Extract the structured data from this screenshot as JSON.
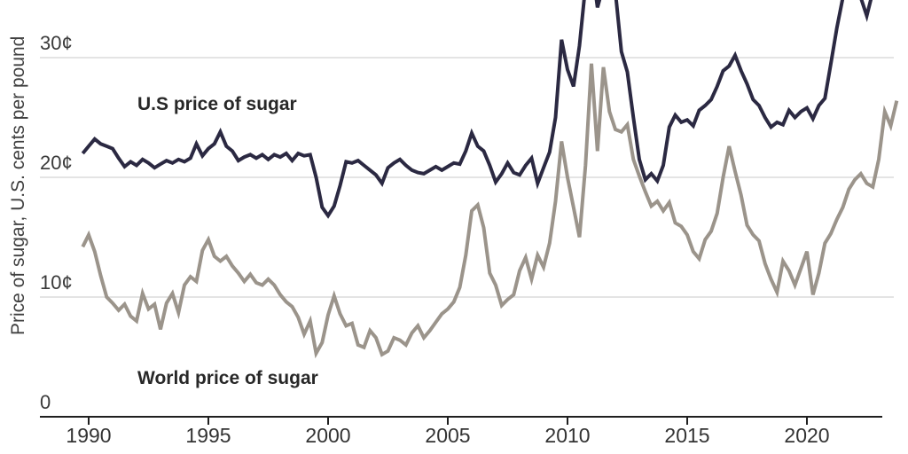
{
  "y_axis": {
    "title": "Price of sugar, U.S. cents per pound",
    "tick_labels": [
      "0",
      "10¢",
      "20¢",
      "30¢"
    ]
  },
  "x_axis": {
    "tick_labels": [
      "1990",
      "1995",
      "2000",
      "2005",
      "2010",
      "2015",
      "2020"
    ]
  },
  "series_labels": {
    "us": "U.S price of sugar",
    "world": "World price of sugar"
  },
  "colors": {
    "us_line": "#2b2942",
    "world_line": "#9b948b",
    "grid": "#dcdcdc",
    "axis": "#1f1f1f",
    "tick_text": "#333333"
  },
  "chart_data": {
    "type": "line",
    "title": "",
    "xlabel": "",
    "ylabel": "Price of sugar, U.S. cents per pound",
    "x_start": 1989.75,
    "x_step": 0.25,
    "x_end": 2023.75,
    "x_label_ticks": [
      1990,
      1995,
      2000,
      2005,
      2010,
      2015,
      2020
    ],
    "y_ticks": [
      0,
      10,
      20,
      30
    ],
    "y_unit": "U.S. cents per pound",
    "ylim_visible": [
      0,
      34.8
    ],
    "grid": "horizontal-only",
    "legend_position": "inline-annotations",
    "annotations": [
      "U.S price of sugar",
      "World price of sugar"
    ],
    "series": [
      {
        "name": "U.S price of sugar",
        "values": [
          22.0,
          22.6,
          23.2,
          22.8,
          22.6,
          22.4,
          21.6,
          20.9,
          21.3,
          21.0,
          21.5,
          21.2,
          20.8,
          21.1,
          21.4,
          21.2,
          21.5,
          21.3,
          21.6,
          22.8,
          21.8,
          22.4,
          22.8,
          23.8,
          22.6,
          22.2,
          21.4,
          21.7,
          21.9,
          21.6,
          21.9,
          21.5,
          21.9,
          21.7,
          22.0,
          21.4,
          22.0,
          21.8,
          21.9,
          20.0,
          17.5,
          16.8,
          17.6,
          19.3,
          21.3,
          21.2,
          21.4,
          21.0,
          20.6,
          20.2,
          19.5,
          20.8,
          21.2,
          21.5,
          21.0,
          20.6,
          20.4,
          20.3,
          20.6,
          20.9,
          20.6,
          20.9,
          21.2,
          21.1,
          22.2,
          23.7,
          22.6,
          22.2,
          21.0,
          19.6,
          20.3,
          21.2,
          20.4,
          20.2,
          21.0,
          21.6,
          19.5,
          20.8,
          22.1,
          25.0,
          31.5,
          29.0,
          27.6,
          31.0,
          36.0,
          38.0,
          34.2,
          36.0,
          38.0,
          35.5,
          30.5,
          28.8,
          25.0,
          21.5,
          19.8,
          20.3,
          19.7,
          21.0,
          24.2,
          25.2,
          24.6,
          24.8,
          24.3,
          25.6,
          26.0,
          26.5,
          27.6,
          28.9,
          29.3,
          30.2,
          28.9,
          27.8,
          26.5,
          26.0,
          25.0,
          24.2,
          24.6,
          24.4,
          25.6,
          25.0,
          25.5,
          25.8,
          24.9,
          26.0,
          26.6,
          29.5,
          32.5,
          35.0,
          37.0,
          37.8,
          35.0,
          33.5,
          35.5,
          37.5,
          38.0,
          38.5,
          39.0
        ]
      },
      {
        "name": "World price of sugar",
        "values": [
          14.2,
          15.2,
          13.8,
          11.8,
          10.0,
          9.5,
          8.9,
          9.4,
          8.4,
          8.0,
          10.3,
          9.0,
          9.4,
          7.3,
          9.5,
          10.3,
          8.7,
          11.0,
          11.7,
          11.3,
          13.9,
          14.8,
          13.4,
          13.0,
          13.4,
          12.6,
          12.0,
          11.3,
          11.9,
          11.2,
          11.0,
          11.5,
          11.0,
          10.2,
          9.6,
          9.2,
          8.3,
          6.9,
          8.0,
          5.3,
          6.2,
          8.5,
          10.1,
          8.6,
          7.6,
          7.8,
          6.0,
          5.8,
          7.2,
          6.6,
          5.2,
          5.5,
          6.6,
          6.4,
          6.0,
          7.0,
          7.6,
          6.6,
          7.2,
          7.9,
          8.6,
          9.0,
          9.6,
          10.8,
          13.5,
          17.2,
          17.7,
          15.8,
          12.0,
          11.0,
          9.3,
          9.8,
          10.2,
          12.2,
          13.3,
          11.5,
          13.5,
          12.5,
          14.5,
          18.0,
          23.0,
          20.0,
          17.5,
          15.0,
          21.0,
          29.5,
          22.2,
          29.2,
          25.5,
          24.0,
          23.8,
          24.4,
          21.5,
          20.1,
          18.8,
          17.6,
          18.0,
          17.2,
          17.9,
          16.2,
          15.9,
          15.2,
          13.8,
          13.2,
          14.8,
          15.5,
          17.0,
          20.0,
          22.6,
          20.5,
          18.5,
          16.0,
          15.2,
          14.7,
          12.8,
          11.5,
          10.4,
          13.0,
          12.2,
          11.0,
          12.4,
          13.8,
          10.2,
          12.0,
          14.5,
          15.3,
          16.5,
          17.5,
          19.0,
          19.8,
          20.3,
          19.5,
          19.2,
          21.5,
          25.5,
          24.3,
          26.4
        ]
      }
    ]
  }
}
